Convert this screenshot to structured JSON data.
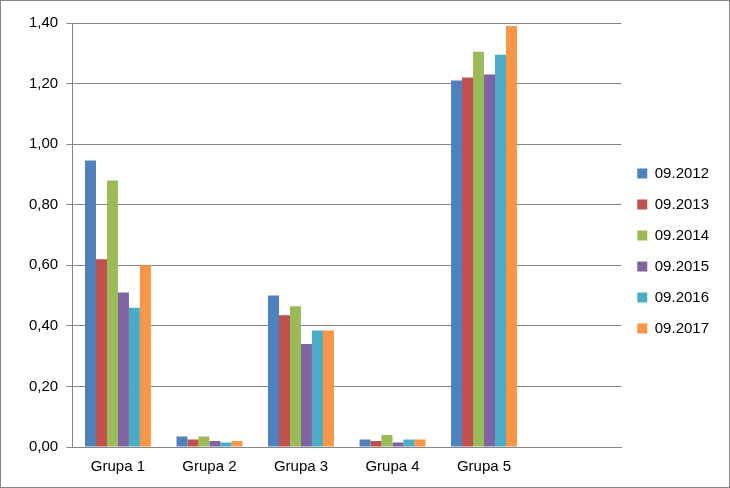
{
  "chart_data": {
    "type": "bar",
    "categories": [
      "Grupa 1",
      "Grupa 2",
      "Grupa 3",
      "Grupa 4",
      "Grupa 5",
      null
    ],
    "series": [
      {
        "name": "09.2012",
        "color": "#4f81bd",
        "values": [
          0.946,
          0.035,
          0.5,
          0.025,
          1.21,
          null
        ]
      },
      {
        "name": "09.2013",
        "color": "#c0504d",
        "values": [
          0.62,
          0.025,
          0.435,
          0.02,
          1.22,
          null
        ]
      },
      {
        "name": "09.2014",
        "color": "#9bbb59",
        "values": [
          0.88,
          0.035,
          0.465,
          0.04,
          1.305,
          null
        ]
      },
      {
        "name": "09.2015",
        "color": "#8064a2",
        "values": [
          0.51,
          0.02,
          0.34,
          0.015,
          1.23,
          null
        ]
      },
      {
        "name": "09.2016",
        "color": "#4bacc6",
        "values": [
          0.46,
          0.015,
          0.385,
          0.025,
          1.295,
          null
        ]
      },
      {
        "name": "09.2017",
        "color": "#f79646",
        "values": [
          0.6,
          0.02,
          0.385,
          0.025,
          1.39,
          null
        ]
      }
    ],
    "ylim": [
      0,
      1.4
    ],
    "yticks": [
      {
        "value": 0,
        "label": "0,00"
      },
      {
        "value": 0.2,
        "label": "0,20"
      },
      {
        "value": 0.4,
        "label": "0,40"
      },
      {
        "value": 0.6,
        "label": "0,60"
      },
      {
        "value": 0.8,
        "label": "0,80"
      },
      {
        "value": 1.0,
        "label": "1,00"
      },
      {
        "value": 1.2,
        "label": "1,20"
      },
      {
        "value": 1.4,
        "label": "1,40"
      }
    ],
    "grid": true,
    "legend": "right"
  }
}
